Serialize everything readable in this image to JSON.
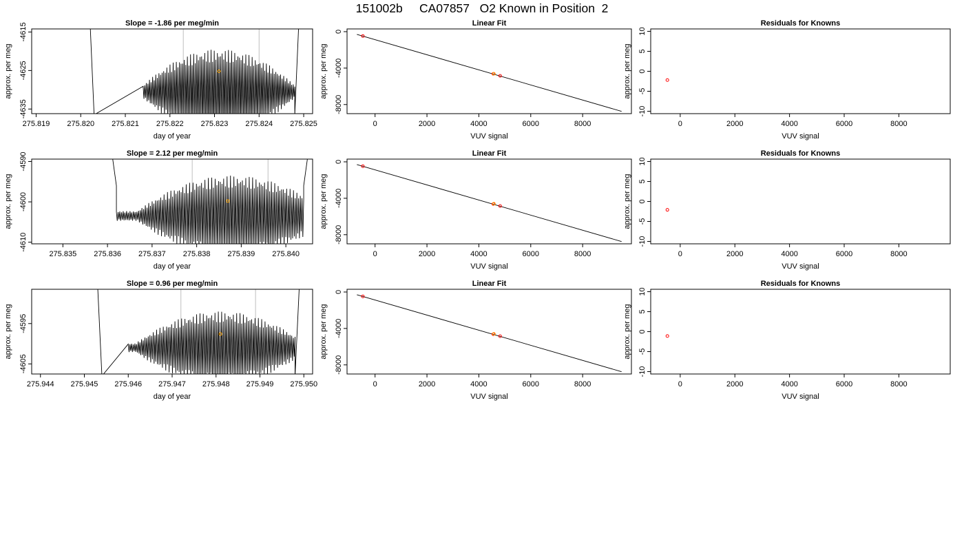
{
  "figure": {
    "title": "151002b     CA07857   O2 Known in Position  2"
  },
  "colors": {
    "trace": "#000000",
    "frame": "#000000",
    "marker_vertical": "#bebebe",
    "known_point": "#ff0000",
    "mean_point": "#ffa500",
    "fit_line": "#000000"
  },
  "chart_data": [
    {
      "type": "line",
      "title": "Slope =  -1.86  per meg/min",
      "xlabel": "day of year",
      "ylabel": "approx. per meg",
      "xlim": [
        275.8189,
        275.8252
      ],
      "ylim": [
        -4636.2,
        -4614.2
      ],
      "xticks": [
        "275.819",
        "275.820",
        "275.821",
        "275.822",
        "275.823",
        "275.824",
        "275.825"
      ],
      "yticks": [
        "-4615",
        "-4625",
        "-4635"
      ],
      "vlines": [
        275.8223,
        275.824
      ],
      "mean_point": {
        "x": 275.8231,
        "y": -4625.2
      },
      "trace": {
        "left_spike": [
          [
            275.8202,
            -4610
          ],
          [
            275.8203,
            -4636.5
          ]
        ],
        "right_spike": [
          [
            275.8248,
            -4636.5
          ],
          [
            275.8249,
            -4610
          ]
        ],
        "osc_start": 275.8214,
        "osc_end": 275.8248,
        "cycles": 96,
        "center": -4630.5,
        "amp_peak": 11,
        "peak_at": 275.8231
      }
    },
    {
      "type": "scatter",
      "title": "Linear Fit",
      "xlabel": "VUV signal",
      "ylabel": "approx. per meg",
      "xlim": [
        -1080,
        9880
      ],
      "ylim": [
        -9000,
        300
      ],
      "xticks": [
        "0",
        "2000",
        "4000",
        "6000",
        "8000"
      ],
      "yticks": [
        "0",
        "-4000",
        "-8000"
      ],
      "fit_line": {
        "x": [
          -700,
          9500
        ],
        "y": [
          -300,
          -8750
        ]
      },
      "knowns": {
        "x": [
          -470,
          4560,
          4820
        ],
        "y": [
          -480,
          -4630,
          -4850
        ]
      },
      "mean_point": {
        "x": 4580,
        "y": -4625
      }
    },
    {
      "type": "scatter",
      "title": "Residuals for Knowns",
      "xlabel": "VUV signal",
      "ylabel": "approx. per meg",
      "xlim": [
        -1080,
        9880
      ],
      "ylim": [
        -10.6,
        10.6
      ],
      "xticks": [
        "0",
        "2000",
        "4000",
        "6000",
        "8000"
      ],
      "yticks": [
        "10",
        "5",
        "0",
        "-5",
        "-10"
      ],
      "points": {
        "x": [
          -470
        ],
        "y": [
          -2.2
        ]
      }
    },
    {
      "type": "line",
      "title": "Slope =  2.12  per meg/min",
      "xlabel": "day of year",
      "ylabel": "approx. per meg",
      "xlim": [
        275.8343,
        275.8406
      ],
      "ylim": [
        -4610.4,
        -4589.4
      ],
      "xticks": [
        "275.835",
        "275.836",
        "275.837",
        "275.838",
        "275.839",
        "275.840"
      ],
      "yticks": [
        "-4590",
        "-4600",
        "-4610"
      ],
      "vlines": [
        275.8379,
        275.8396
      ],
      "mean_point": {
        "x": 275.8387,
        "y": -4599.8
      },
      "trace": {
        "left_spike": [
          [
            275.8361,
            -4588
          ],
          [
            275.8362,
            -4596
          ]
        ],
        "right_spike": [
          [
            275.8404,
            -4596
          ],
          [
            275.8405,
            -4588
          ]
        ],
        "osc_start": 275.8362,
        "osc_end": 275.8404,
        "cycles": 110,
        "center": -4603.5,
        "amp_peak": 10,
        "peak_at": 275.8388
      }
    },
    {
      "type": "scatter",
      "title": "Linear Fit",
      "xlabel": "VUV signal",
      "ylabel": "approx. per meg",
      "xlim": [
        -1080,
        9880
      ],
      "ylim": [
        -9000,
        300
      ],
      "xticks": [
        "0",
        "2000",
        "4000",
        "6000",
        "8000"
      ],
      "yticks": [
        "0",
        "-4000",
        "-8000"
      ],
      "fit_line": {
        "x": [
          -700,
          9500
        ],
        "y": [
          -300,
          -8750
        ]
      },
      "knowns": {
        "x": [
          -470,
          4560,
          4820
        ],
        "y": [
          -480,
          -4630,
          -4850
        ]
      },
      "mean_point": {
        "x": 4580,
        "y": -4600
      }
    },
    {
      "type": "scatter",
      "title": "Residuals for Knowns",
      "xlabel": "VUV signal",
      "ylabel": "approx. per meg",
      "xlim": [
        -1080,
        9880
      ],
      "ylim": [
        -10.6,
        10.6
      ],
      "xticks": [
        "0",
        "2000",
        "4000",
        "6000",
        "8000"
      ],
      "yticks": [
        "10",
        "5",
        "0",
        "-5",
        "-10"
      ],
      "points": {
        "x": [
          -470
        ],
        "y": [
          -2.1
        ]
      }
    },
    {
      "type": "line",
      "title": "Slope =  0.96  per meg/min",
      "xlabel": "day of year",
      "ylabel": "approx. per meg",
      "xlim": [
        275.9438,
        275.9502
      ],
      "ylim": [
        -4607.5,
        -4586.5
      ],
      "xticks": [
        "275.944",
        "275.945",
        "275.946",
        "275.947",
        "275.948",
        "275.949",
        "275.950"
      ],
      "yticks": [
        "-4595",
        "-4605"
      ],
      "vlines": [
        275.9472,
        275.9489
      ],
      "mean_point": {
        "x": 275.9481,
        "y": -4597.6
      },
      "trace": {
        "left_spike": [
          [
            275.9453,
            -4585
          ],
          [
            275.9454,
            -4608
          ]
        ],
        "right_spike": [
          [
            275.9498,
            -4608
          ],
          [
            275.9499,
            -4585
          ]
        ],
        "osc_start": 275.946,
        "osc_end": 275.9498,
        "cycles": 100,
        "center": -4601,
        "amp_peak": 9,
        "peak_at": 275.9481
      }
    },
    {
      "type": "scatter",
      "title": "Linear Fit",
      "xlabel": "VUV signal",
      "ylabel": "approx. per meg",
      "xlim": [
        -1080,
        9880
      ],
      "ylim": [
        -9000,
        300
      ],
      "xticks": [
        "0",
        "2000",
        "4000",
        "6000",
        "8000"
      ],
      "yticks": [
        "0",
        "-4000",
        "-8000"
      ],
      "fit_line": {
        "x": [
          -700,
          9500
        ],
        "y": [
          -300,
          -8750
        ]
      },
      "knowns": {
        "x": [
          -470,
          4560,
          4820
        ],
        "y": [
          -480,
          -4630,
          -4850
        ]
      },
      "mean_point": {
        "x": 4580,
        "y": -4598
      }
    },
    {
      "type": "scatter",
      "title": "Residuals for Knowns",
      "xlabel": "VUV signal",
      "ylabel": "approx. per meg",
      "xlim": [
        -1080,
        9880
      ],
      "ylim": [
        -10.6,
        10.6
      ],
      "xticks": [
        "0",
        "2000",
        "4000",
        "6000",
        "8000"
      ],
      "yticks": [
        "10",
        "5",
        "0",
        "-5",
        "-10"
      ],
      "points": {
        "x": [
          -470
        ],
        "y": [
          -1.1
        ]
      }
    }
  ]
}
